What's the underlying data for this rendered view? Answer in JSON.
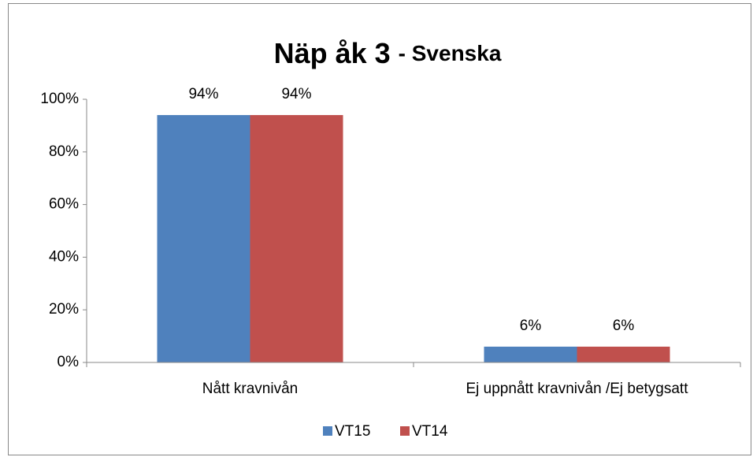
{
  "chart_data": {
    "type": "bar",
    "title": [
      "Näp åk 3",
      "- Svenska"
    ],
    "categories": [
      "Nått kravnivån",
      "Ej uppnått kravnivån /Ej betygsatt"
    ],
    "series": [
      {
        "name": "VT15",
        "color": "#4f81bd",
        "values": [
          94,
          6
        ],
        "value_labels": [
          "94%",
          "6%"
        ]
      },
      {
        "name": "VT14",
        "color": "#c0504d",
        "values": [
          94,
          6
        ],
        "value_labels": [
          "94%",
          "6%"
        ]
      }
    ],
    "ylim": [
      0,
      100
    ],
    "yticks": [
      {
        "value": 0,
        "label": "0%"
      },
      {
        "value": 20,
        "label": "20%"
      },
      {
        "value": 40,
        "label": "40%"
      },
      {
        "value": 60,
        "label": "60%"
      },
      {
        "value": 80,
        "label": "80%"
      },
      {
        "value": 100,
        "label": "100%"
      }
    ],
    "grid": false,
    "legend": "bottom"
  }
}
